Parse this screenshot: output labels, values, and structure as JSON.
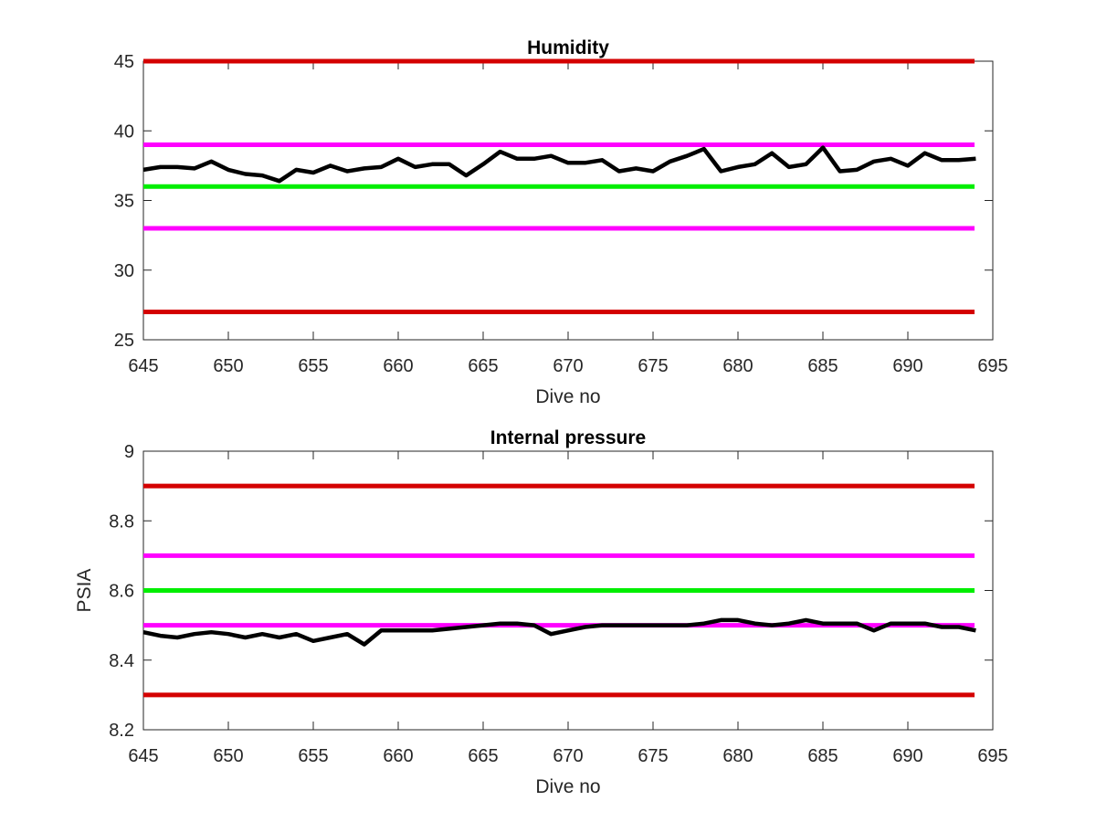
{
  "chart_data": [
    {
      "type": "line",
      "title": "Humidity",
      "xlabel": "Dive no",
      "ylabel": "",
      "xlim": [
        645,
        695
      ],
      "ylim": [
        25,
        45
      ],
      "xticks": [
        645,
        650,
        655,
        660,
        665,
        670,
        675,
        680,
        685,
        690,
        695
      ],
      "yticks": [
        25,
        30,
        35,
        40,
        45
      ],
      "x_tick_labels": [
        "645",
        "650",
        "655",
        "660",
        "665",
        "670",
        "675",
        "680",
        "685",
        "690",
        "695"
      ],
      "y_tick_labels": [
        "25",
        "30",
        "35",
        "40",
        "45"
      ],
      "grid": false,
      "reference_lines": [
        {
          "y": 45,
          "color": "#d40000"
        },
        {
          "y": 39,
          "color": "#ff00ff"
        },
        {
          "y": 36,
          "color": "#00ee00"
        },
        {
          "y": 33,
          "color": "#ff00ff"
        },
        {
          "y": 27,
          "color": "#d40000"
        }
      ],
      "series": [
        {
          "color": "#000000",
          "x": [
            645,
            646,
            647,
            648,
            649,
            650,
            651,
            652,
            653,
            654,
            655,
            656,
            657,
            658,
            659,
            660,
            661,
            662,
            663,
            664,
            665,
            666,
            667,
            668,
            669,
            670,
            671,
            672,
            673,
            674,
            675,
            676,
            677,
            678,
            679,
            680,
            681,
            682,
            683,
            684,
            685,
            686,
            687,
            688,
            689,
            690,
            691,
            692,
            693,
            694
          ],
          "y": [
            37.2,
            37.4,
            37.4,
            37.3,
            37.8,
            37.2,
            36.9,
            36.8,
            36.4,
            37.2,
            37.0,
            37.5,
            37.1,
            37.3,
            37.4,
            38.0,
            37.4,
            37.6,
            37.6,
            36.8,
            37.6,
            38.5,
            38.0,
            38.0,
            38.2,
            37.7,
            37.7,
            37.9,
            37.1,
            37.3,
            37.1,
            37.8,
            38.2,
            38.7,
            37.1,
            37.4,
            37.6,
            38.4,
            37.4,
            37.6,
            38.8,
            37.1,
            37.2,
            37.8,
            38.0,
            37.5,
            38.4,
            37.9,
            37.9,
            38.0
          ]
        }
      ]
    },
    {
      "type": "line",
      "title": "Internal pressure",
      "xlabel": "Dive no",
      "ylabel": "PSIA",
      "xlim": [
        645,
        695
      ],
      "ylim": [
        8.2,
        9.0
      ],
      "xticks": [
        645,
        650,
        655,
        660,
        665,
        670,
        675,
        680,
        685,
        690,
        695
      ],
      "yticks": [
        8.2,
        8.4,
        8.6,
        8.8,
        9.0
      ],
      "x_tick_labels": [
        "645",
        "650",
        "655",
        "660",
        "665",
        "670",
        "675",
        "680",
        "685",
        "690",
        "695"
      ],
      "y_tick_labels": [
        "8.2",
        "8.4",
        "8.6",
        "8.8",
        "9"
      ],
      "grid": false,
      "reference_lines": [
        {
          "y": 8.9,
          "color": "#d40000"
        },
        {
          "y": 8.7,
          "color": "#ff00ff"
        },
        {
          "y": 8.6,
          "color": "#00ee00"
        },
        {
          "y": 8.5,
          "color": "#ff00ff"
        },
        {
          "y": 8.3,
          "color": "#d40000"
        }
      ],
      "series": [
        {
          "color": "#000000",
          "x": [
            645,
            646,
            647,
            648,
            649,
            650,
            651,
            652,
            653,
            654,
            655,
            656,
            657,
            658,
            659,
            660,
            661,
            662,
            663,
            664,
            665,
            666,
            667,
            668,
            669,
            670,
            671,
            672,
            673,
            674,
            675,
            676,
            677,
            678,
            679,
            680,
            681,
            682,
            683,
            684,
            685,
            686,
            687,
            688,
            689,
            690,
            691,
            692,
            693,
            694
          ],
          "y": [
            8.48,
            8.47,
            8.465,
            8.475,
            8.48,
            8.475,
            8.465,
            8.475,
            8.465,
            8.475,
            8.455,
            8.465,
            8.475,
            8.445,
            8.485,
            8.485,
            8.485,
            8.485,
            8.49,
            8.495,
            8.5,
            8.505,
            8.505,
            8.5,
            8.475,
            8.485,
            8.495,
            8.5,
            8.5,
            8.5,
            8.5,
            8.5,
            8.5,
            8.505,
            8.515,
            8.515,
            8.505,
            8.5,
            8.505,
            8.515,
            8.505,
            8.505,
            8.505,
            8.485,
            8.505,
            8.505,
            8.505,
            8.495,
            8.495,
            8.485
          ]
        }
      ]
    }
  ]
}
